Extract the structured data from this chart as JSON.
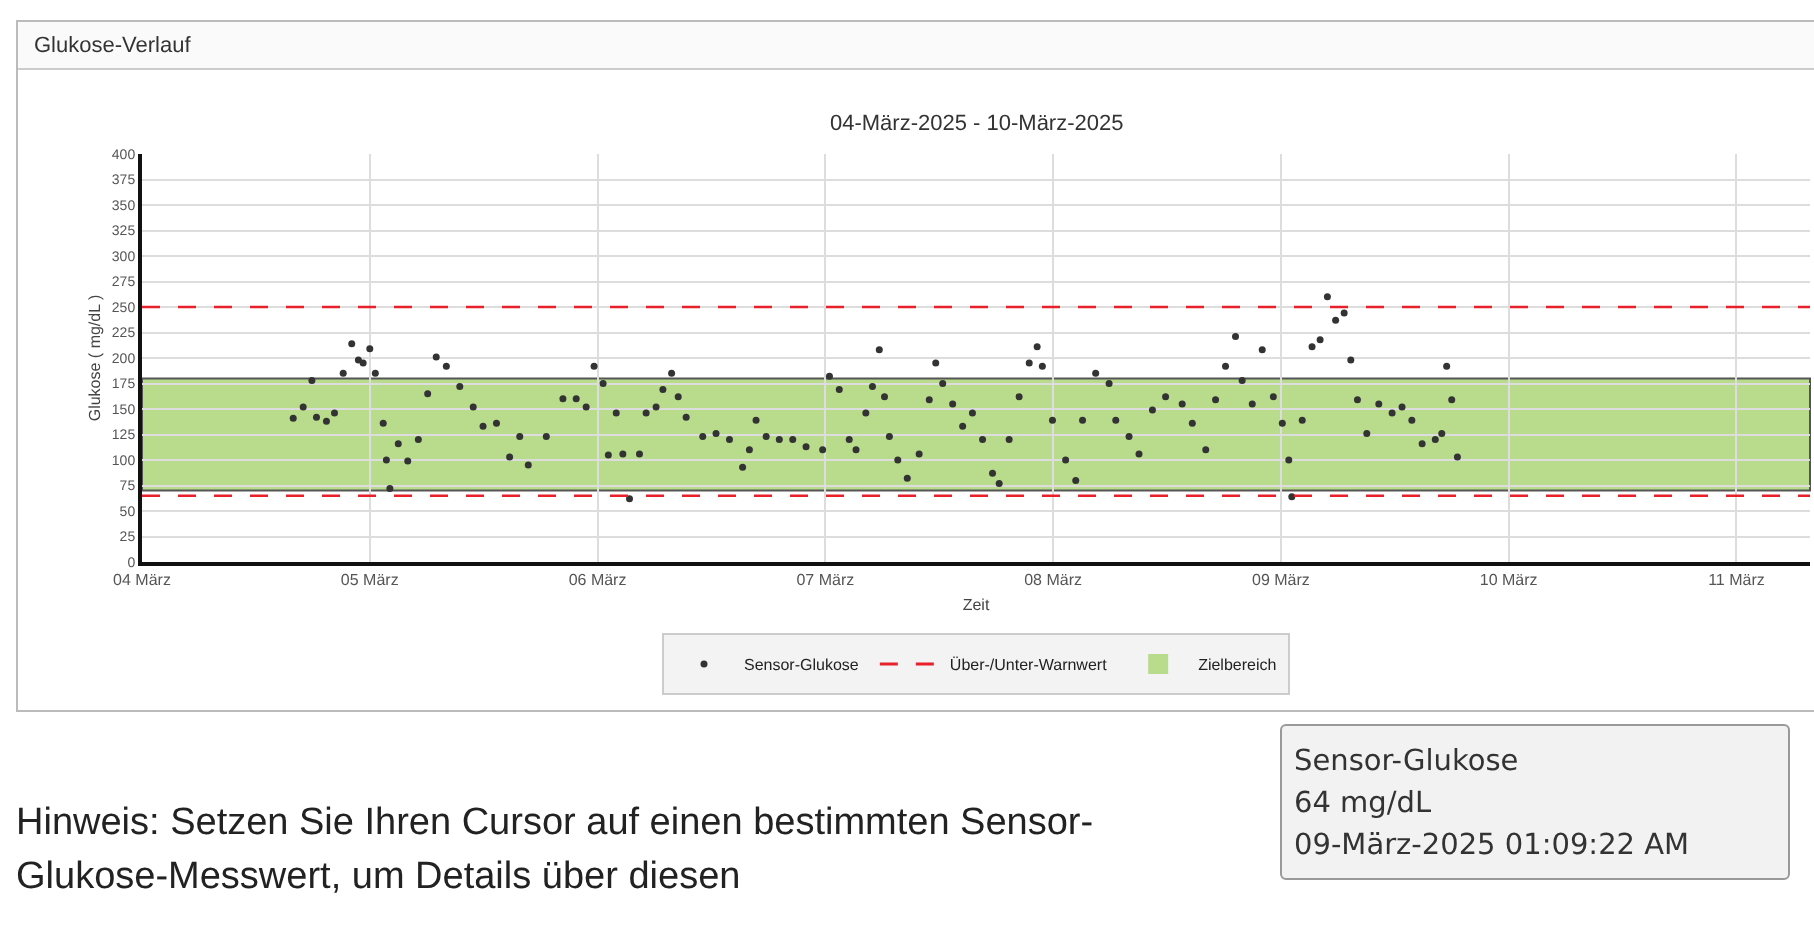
{
  "chart_data": {
    "type": "scatter",
    "title": "Glukose-Verlauf",
    "subtitle": "04-März-2025 - 10-März-2025",
    "xlabel": "Zeit",
    "ylabel": "Glukose ( mg/dL )",
    "x": [
      "2025-03-04T15:56",
      "2025-03-04T16:59",
      "2025-03-04T17:54",
      "2025-03-04T18:23",
      "2025-03-04T19:26",
      "2025-03-04T20:17",
      "2025-03-04T21:12",
      "2025-03-04T22:06",
      "2025-03-04T22:48",
      "2025-03-04T23:18",
      "2025-03-05T00:00",
      "2025-03-05T00:35",
      "2025-03-05T01:25",
      "2025-03-05T01:45",
      "2025-03-05T02:07",
      "2025-03-05T03:00",
      "2025-03-05T04:00",
      "2025-03-05T05:07",
      "2025-03-05T06:06",
      "2025-03-05T07:00",
      "2025-03-05T08:04",
      "2025-03-05T09:29",
      "2025-03-05T10:54",
      "2025-03-05T11:56",
      "2025-03-05T13:21",
      "2025-03-05T14:44",
      "2025-03-05T15:48",
      "2025-03-05T16:42",
      "2025-03-05T18:36",
      "2025-03-05T20:21",
      "2025-03-05T21:45",
      "2025-03-05T22:48",
      "2025-03-05T23:38",
      "2025-03-06T00:35",
      "2025-03-06T01:08",
      "2025-03-06T01:58",
      "2025-03-06T02:40",
      "2025-03-06T03:22",
      "2025-03-06T04:25",
      "2025-03-06T05:07",
      "2025-03-06T06:10",
      "2025-03-06T06:53",
      "2025-03-06T07:48",
      "2025-03-06T08:30",
      "2025-03-06T09:20",
      "2025-03-06T11:05",
      "2025-03-06T12:29",
      "2025-03-06T13:54",
      "2025-03-06T15:17",
      "2025-03-06T16:00",
      "2025-03-06T16:42",
      "2025-03-06T17:46",
      "2025-03-06T19:09",
      "2025-03-06T20:34",
      "2025-03-06T21:58",
      "2025-03-06T23:43",
      "2025-03-07T00:26",
      "2025-03-07T01:28",
      "2025-03-07T02:31",
      "2025-03-07T03:14",
      "2025-03-07T04:16",
      "2025-03-07T04:58",
      "2025-03-07T05:41",
      "2025-03-07T06:14",
      "2025-03-07T06:45",
      "2025-03-07T07:38",
      "2025-03-07T08:38",
      "2025-03-07T09:53",
      "2025-03-07T10:57",
      "2025-03-07T11:38",
      "2025-03-07T12:22",
      "2025-03-07T13:25",
      "2025-03-07T14:28",
      "2025-03-07T15:30",
      "2025-03-07T16:34",
      "2025-03-07T17:37",
      "2025-03-07T18:19",
      "2025-03-07T19:22",
      "2025-03-07T20:25",
      "2025-03-07T21:29",
      "2025-03-07T22:19",
      "2025-03-07T22:52",
      "2025-03-07T23:56",
      "2025-03-08T01:19",
      "2025-03-08T02:23",
      "2025-03-08T03:06",
      "2025-03-08T04:29",
      "2025-03-08T05:54",
      "2025-03-08T06:36",
      "2025-03-08T08:00",
      "2025-03-08T09:03",
      "2025-03-08T10:28",
      "2025-03-08T11:51",
      "2025-03-08T13:36",
      "2025-03-08T14:40",
      "2025-03-08T16:05",
      "2025-03-08T17:07",
      "2025-03-08T18:10",
      "2025-03-08T19:13",
      "2025-03-08T19:55",
      "2025-03-08T20:59",
      "2025-03-08T22:02",
      "2025-03-08T23:12",
      "2025-03-09T00:09",
      "2025-03-09T00:50",
      "2025-03-09T01:09",
      "2025-03-09T02:15",
      "2025-03-09T03:17",
      "2025-03-09T04:08",
      "2025-03-09T04:54",
      "2025-03-09T05:46",
      "2025-03-09T06:40",
      "2025-03-09T07:22",
      "2025-03-09T08:04",
      "2025-03-09T09:03",
      "2025-03-09T10:19",
      "2025-03-09T11:43",
      "2025-03-09T12:46",
      "2025-03-09T13:48",
      "2025-03-09T14:53",
      "2025-03-09T16:16",
      "2025-03-09T16:57",
      "2025-03-09T17:28",
      "2025-03-09T18:00",
      "2025-03-09T18:36"
    ],
    "series": [
      {
        "name": "Sensor-Glukose",
        "color": "#333333",
        "values": [
          141,
          152,
          178,
          142,
          138,
          146,
          185,
          214,
          198,
          195,
          209,
          185,
          136,
          100,
          72,
          116,
          99,
          120,
          165,
          201,
          192,
          172,
          152,
          133,
          136,
          103,
          123,
          95,
          123,
          160,
          160,
          152,
          192,
          175,
          105,
          146,
          106,
          62,
          106,
          146,
          152,
          169,
          185,
          162,
          142,
          123,
          126,
          120,
          93,
          110,
          139,
          123,
          120,
          120,
          113,
          110,
          182,
          169,
          120,
          110,
          146,
          172,
          208,
          162,
          123,
          100,
          82,
          106,
          159,
          195,
          175,
          155,
          133,
          146,
          120,
          87,
          77,
          120,
          162,
          195,
          211,
          192,
          139,
          100,
          80,
          139,
          185,
          175,
          139,
          123,
          106,
          149,
          162,
          155,
          136,
          110,
          159,
          192,
          221,
          178,
          155,
          208,
          162,
          136,
          100,
          64,
          139,
          211,
          218,
          260,
          237,
          244,
          198,
          159,
          126,
          155,
          146,
          152,
          139,
          116,
          120,
          126,
          192,
          159,
          103
        ]
      }
    ],
    "marker": "circle",
    "xlim": [
      "2025-03-04",
      "2025-03-11T07:45"
    ],
    "xticks": [
      {
        "value": "2025-03-04",
        "label": "04 März"
      },
      {
        "value": "2025-03-05",
        "label": "05 März"
      },
      {
        "value": "2025-03-06",
        "label": "06 März"
      },
      {
        "value": "2025-03-07",
        "label": "07 März"
      },
      {
        "value": "2025-03-08",
        "label": "08 März"
      },
      {
        "value": "2025-03-09",
        "label": "09 März"
      },
      {
        "value": "2025-03-10",
        "label": "10 März"
      },
      {
        "value": "2025-03-11",
        "label": "11 März"
      }
    ],
    "ylim": [
      0,
      400
    ],
    "yticks": [
      0,
      25,
      50,
      75,
      100,
      125,
      150,
      175,
      200,
      225,
      250,
      275,
      300,
      325,
      350,
      375,
      400
    ],
    "grid": true,
    "ref_lines": [
      {
        "axis": "y",
        "value": 250,
        "label": "Über-/Unter-Warnwert",
        "color": "#e8202a",
        "line_style": "dashed"
      },
      {
        "axis": "y",
        "value": 65,
        "color": "#e8202a",
        "line_style": "dashed"
      }
    ],
    "bands": [
      {
        "axis": "y",
        "from": 70,
        "to": 180,
        "label": "Zielbereich",
        "color": "#b8dc8c"
      }
    ],
    "legend": "bottom",
    "annotations": [
      "Sensor-Glukose\n64 mg/dL\n09-März-2025 01:09:22 AM",
      "Hinweis: Setzen Sie Ihren Cursor auf einen bestimmten Sensor-Glukose-Messwert, um Details über diesen"
    ]
  }
}
